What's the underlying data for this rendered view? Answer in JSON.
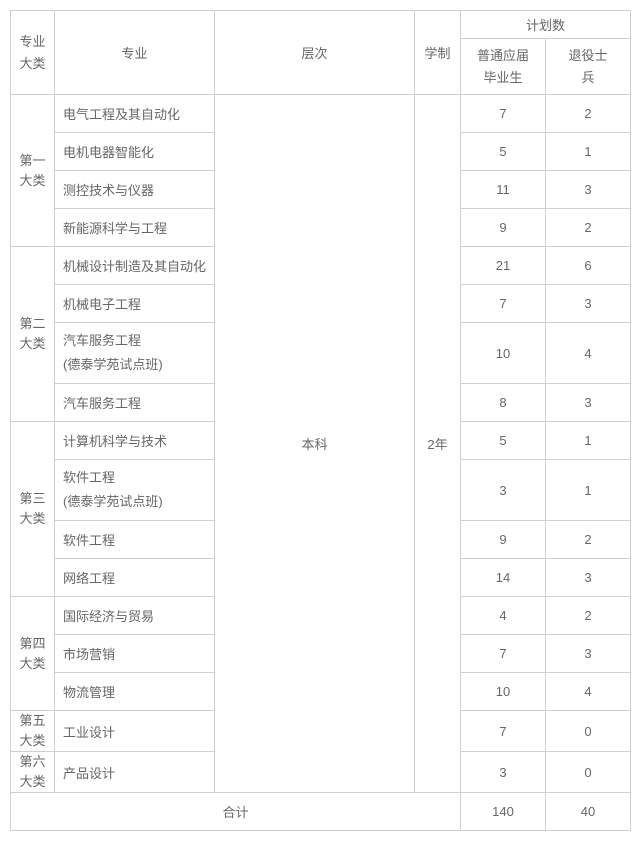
{
  "headers": {
    "category": "专业\n大类",
    "major": "专业",
    "level": "层次",
    "duration": "学制",
    "plan": "计划数",
    "plan_normal": "普通应届\n毕业生",
    "plan_retired": "退役士\n兵"
  },
  "level_value": "本科",
  "duration_value": "2年",
  "categories": [
    {
      "name": "第一\n大类",
      "majors": [
        {
          "name": "电气工程及其自动化",
          "normal": 7,
          "retired": 2
        },
        {
          "name": "电机电器智能化",
          "normal": 5,
          "retired": 1
        },
        {
          "name": "测控技术与仪器",
          "normal": 11,
          "retired": 3
        },
        {
          "name": "新能源科学与工程",
          "normal": 9,
          "retired": 2
        }
      ]
    },
    {
      "name": "第二\n大类",
      "majors": [
        {
          "name": "机械设计制造及其自动化",
          "normal": 21,
          "retired": 6
        },
        {
          "name": "机械电子工程",
          "normal": 7,
          "retired": 3
        },
        {
          "name": "汽车服务工程\n(德泰学苑试点班)",
          "normal": 10,
          "retired": 4,
          "twoLine": true
        },
        {
          "name": "汽车服务工程",
          "normal": 8,
          "retired": 3
        }
      ]
    },
    {
      "name": "第三\n大类",
      "majors": [
        {
          "name": "计算机科学与技术",
          "normal": 5,
          "retired": 1
        },
        {
          "name": "软件工程\n(德泰学苑试点班)",
          "normal": 3,
          "retired": 1,
          "twoLine": true
        },
        {
          "name": "软件工程",
          "normal": 9,
          "retired": 2
        },
        {
          "name": "网络工程",
          "normal": 14,
          "retired": 3
        }
      ]
    },
    {
      "name": "第四\n大类",
      "majors": [
        {
          "name": "国际经济与贸易",
          "normal": 4,
          "retired": 2
        },
        {
          "name": "市场营销",
          "normal": 7,
          "retired": 3
        },
        {
          "name": "物流管理",
          "normal": 10,
          "retired": 4
        }
      ]
    },
    {
      "name": "第五\n大类",
      "majors": [
        {
          "name": "工业设计",
          "normal": 7,
          "retired": 0
        }
      ]
    },
    {
      "name": "第六\n大类",
      "majors": [
        {
          "name": "产品设计",
          "normal": 3,
          "retired": 0
        }
      ]
    }
  ],
  "footer": {
    "label": "合计",
    "total_normal": 140,
    "total_retired": 40
  },
  "style": {
    "border_color": "#d0d0d0",
    "text_color": "#666666",
    "background": "#ffffff",
    "font_size_pt": 10
  }
}
